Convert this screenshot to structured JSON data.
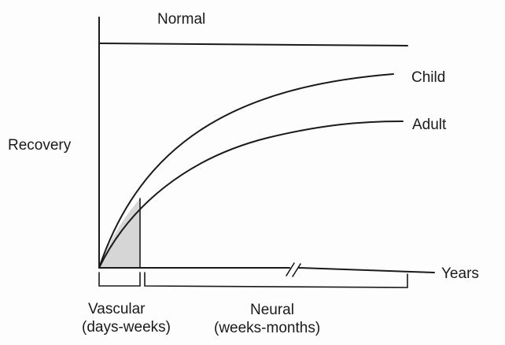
{
  "chart_data": {
    "type": "line",
    "xlabel": "Years",
    "ylabel": "Recovery",
    "series": [
      {
        "name": "Normal",
        "shape": "flat",
        "level": 1.0
      },
      {
        "name": "Child",
        "shape": "saturating",
        "plateau": 0.85
      },
      {
        "name": "Adult",
        "shape": "saturating",
        "plateau": 0.65
      }
    ],
    "phases": [
      {
        "label": "Vascular",
        "sublabel": "(days-weeks)",
        "shaded": true
      },
      {
        "label": "Neural",
        "sublabel": "(weeks-months)",
        "shaded": false
      }
    ],
    "axis_break": true,
    "colors": {
      "line": "#1a1a1a",
      "shade": "#d6d6d6"
    }
  }
}
